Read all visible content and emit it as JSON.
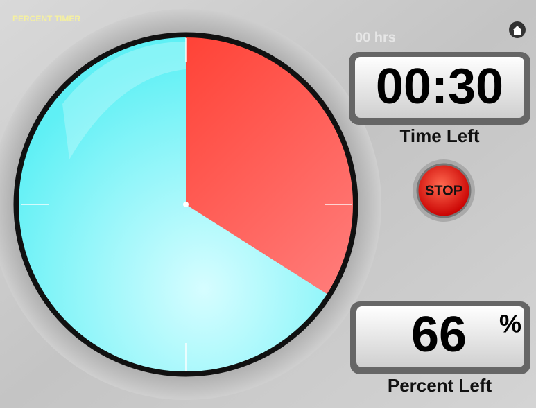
{
  "app": {
    "title": "PERCENT TIMER",
    "hours": "00 hrs"
  },
  "timer": {
    "time": "00:30",
    "time_label": "Time Left",
    "stop_button": "STOP",
    "percent_left": 66,
    "percent_sign": "%",
    "percent_label": "Percent Left"
  }
}
